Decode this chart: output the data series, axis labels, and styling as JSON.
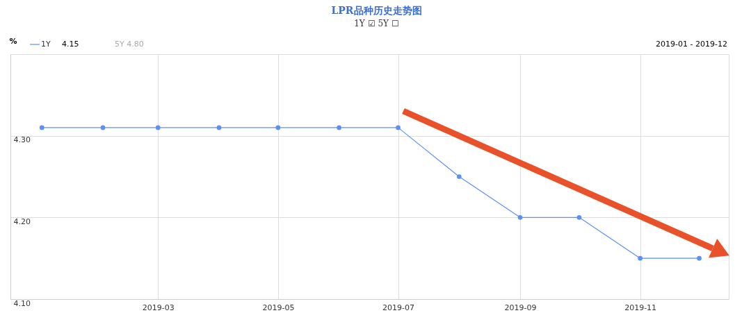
{
  "chart_data": {
    "type": "line",
    "title": "LPR品种历史走势图",
    "subtitle": "1Y ☑ 5Y ☐",
    "ylabel": "%",
    "x": [
      "2019-01",
      "2019-02",
      "2019-03",
      "2019-04",
      "2019-05",
      "2019-06",
      "2019-07",
      "2019-08",
      "2019-09",
      "2019-10",
      "2019-11",
      "2019-12"
    ],
    "series": [
      {
        "name": "1Y",
        "color": "#5b8ff9",
        "values": [
          4.31,
          4.31,
          4.31,
          4.31,
          4.31,
          4.31,
          4.31,
          4.25,
          4.2,
          4.2,
          4.15,
          4.15
        ]
      }
    ],
    "xlim": [
      "2018-12-16",
      "2019-12-16"
    ],
    "xticks": [
      "2019-03",
      "2019-05",
      "2019-07",
      "2019-09",
      "2019-11"
    ],
    "ylim": [
      4.1,
      4.4
    ],
    "yticks": [
      {
        "value": 4.1,
        "label": "4.10"
      },
      {
        "value": 4.2,
        "label": "4.20"
      },
      {
        "value": 4.3,
        "label": "4.30"
      }
    ],
    "grid": true,
    "marker": "circle",
    "line_style": "solid",
    "legend": "top left",
    "annotations": [
      "4.15",
      "5Y 4.80",
      "2019-01 - 2019-12"
    ]
  }
}
